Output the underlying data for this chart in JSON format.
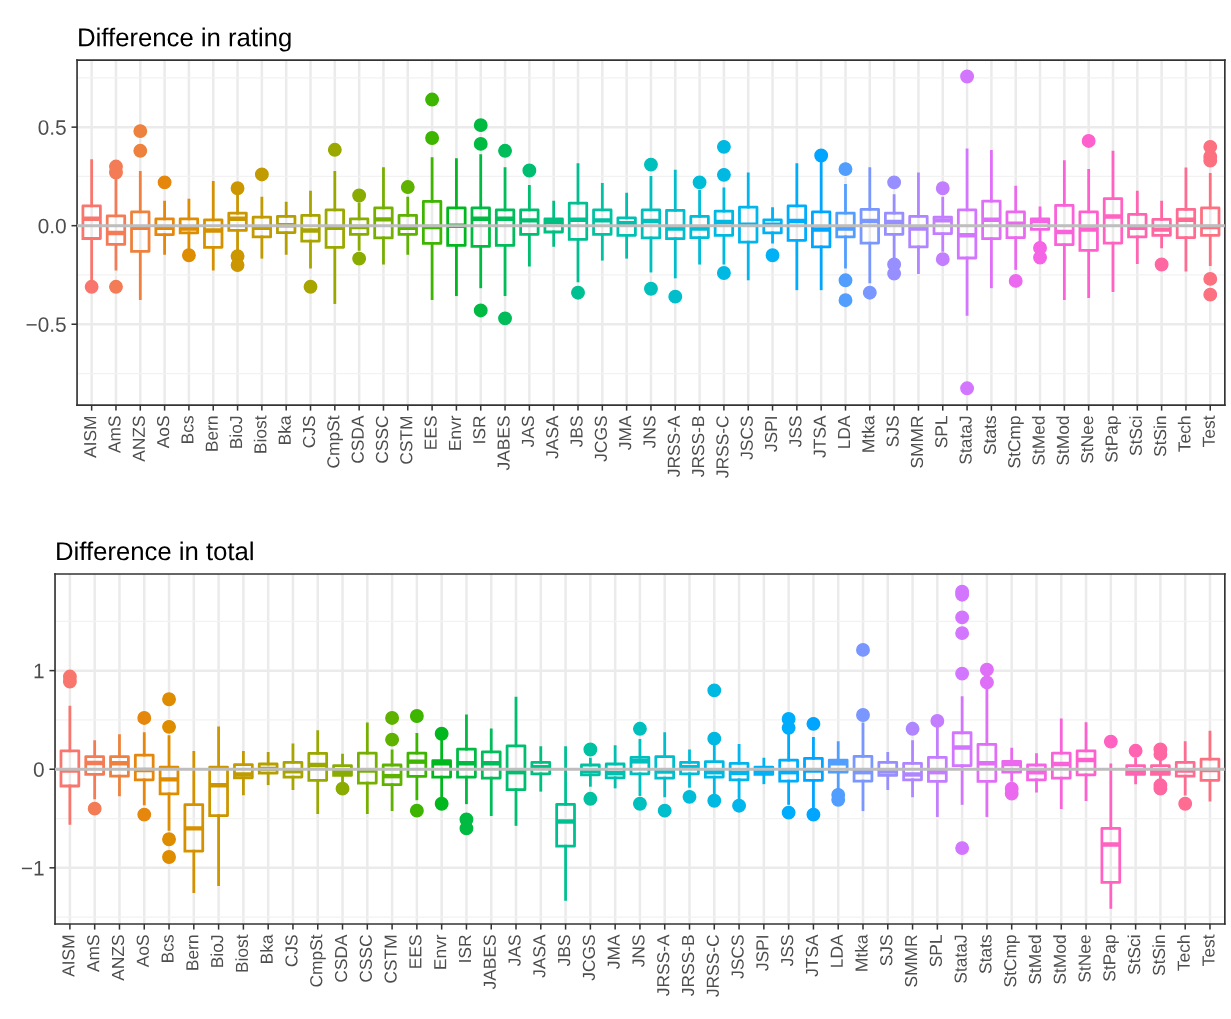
{
  "chart_data": [
    {
      "type": "box",
      "title": "Difference in rating",
      "categories": [
        "AISM",
        "AmS",
        "ANZS",
        "AoS",
        "Bcs",
        "Bern",
        "BioJ",
        "Biost",
        "Bka",
        "CJS",
        "CmpSt",
        "CSDA",
        "CSSC",
        "CSTM",
        "EES",
        "Envr",
        "ISR",
        "JABES",
        "JAS",
        "JASA",
        "JBS",
        "JCGS",
        "JMA",
        "JNS",
        "JRSS-A",
        "JRSS-B",
        "JRSS-C",
        "JSCS",
        "JSPI",
        "JSS",
        "JTSA",
        "LDA",
        "Mtka",
        "SJS",
        "SMMR",
        "SPL",
        "StataJ",
        "Stats",
        "StCmp",
        "StMed",
        "StMod",
        "StNee",
        "StPap",
        "StSci",
        "StSin",
        "Tech",
        "Test"
      ],
      "colors": [
        "#f8766d",
        "#f37c57",
        "#ed813d",
        "#e6870d",
        "#de8c00",
        "#d59100",
        "#cb9600",
        "#c19b00",
        "#b59f00",
        "#a8a400",
        "#9aa800",
        "#8aac00",
        "#77af00",
        "#5fb200",
        "#3eb500",
        "#00b81d",
        "#00ba42",
        "#00bc5a",
        "#00be6f",
        "#00bf81",
        "#00c092",
        "#00c1a1",
        "#00c0b0",
        "#00c0be",
        "#00becb",
        "#00bcd7",
        "#00b9e2",
        "#00b6ec",
        "#00b1f5",
        "#00acfc",
        "#00a5ff",
        "#519eff",
        "#7a97ff",
        "#978fff",
        "#af86ff",
        "#c37eff",
        "#d376ff",
        "#e06ff8",
        "#eb69ef",
        "#f464e5",
        "#fa62da",
        "#fe61ce",
        "#ff62c0",
        "#ff64b2",
        "#ff67a2",
        "#ff6c92",
        "#fc7180"
      ],
      "boxes": [
        {
          "low": -0.27,
          "q1": -0.065,
          "median": 0.035,
          "q3": 0.1,
          "high": 0.33,
          "outliers": [
            -0.31
          ]
        },
        {
          "low": -0.22,
          "q1": -0.095,
          "median": -0.037,
          "q3": 0.05,
          "high": 0.24,
          "outliers": [
            0.3,
            0.27,
            -0.31
          ]
        },
        {
          "low": -0.37,
          "q1": -0.13,
          "median": -0.01,
          "q3": 0.07,
          "high": 0.27,
          "outliers": [
            0.48,
            0.38
          ]
        },
        {
          "low": -0.14,
          "q1": -0.045,
          "median": -0.01,
          "q3": 0.035,
          "high": 0.12,
          "outliers": [
            0.22
          ]
        },
        {
          "low": -0.12,
          "q1": -0.037,
          "median": -0.015,
          "q3": 0.035,
          "high": 0.13,
          "outliers": [
            -0.15
          ]
        },
        {
          "low": -0.22,
          "q1": -0.11,
          "median": -0.024,
          "q3": 0.03,
          "high": 0.22
        },
        {
          "low": -0.12,
          "q1": -0.024,
          "median": 0.035,
          "q3": 0.064,
          "high": 0.157,
          "outliers": [
            0.19,
            -0.155,
            -0.2
          ]
        },
        {
          "low": -0.16,
          "q1": -0.057,
          "median": -0.01,
          "q3": 0.044,
          "high": 0.14,
          "outliers": [
            0.26
          ]
        },
        {
          "low": -0.14,
          "q1": -0.035,
          "median": 0.002,
          "q3": 0.047,
          "high": 0.115
        },
        {
          "low": -0.21,
          "q1": -0.078,
          "median": -0.024,
          "q3": 0.052,
          "high": 0.17,
          "outliers": [
            -0.31
          ]
        },
        {
          "low": -0.39,
          "q1": -0.11,
          "median": -0.01,
          "q3": 0.08,
          "high": 0.27,
          "outliers": [
            0.385
          ]
        },
        {
          "low": -0.12,
          "q1": -0.044,
          "median": -0.007,
          "q3": 0.035,
          "high": 0.11,
          "outliers": [
            0.153,
            -0.167
          ]
        },
        {
          "low": -0.19,
          "q1": -0.062,
          "median": 0.032,
          "q3": 0.09,
          "high": 0.29
        },
        {
          "low": -0.14,
          "q1": -0.044,
          "median": -0.01,
          "q3": 0.052,
          "high": 0.14,
          "outliers": [
            0.196
          ]
        },
        {
          "low": -0.37,
          "q1": -0.09,
          "median": -0.007,
          "q3": 0.123,
          "high": 0.34,
          "outliers": [
            0.64,
            0.445
          ]
        },
        {
          "low": -0.35,
          "q1": -0.1,
          "median": 0.0,
          "q3": 0.09,
          "high": 0.335
        },
        {
          "low": -0.31,
          "q1": -0.105,
          "median": 0.035,
          "q3": 0.09,
          "high": 0.355,
          "outliers": [
            0.51,
            0.415,
            -0.43
          ]
        },
        {
          "low": -0.35,
          "q1": -0.1,
          "median": 0.035,
          "q3": 0.08,
          "high": 0.29,
          "outliers": [
            0.38,
            -0.47
          ]
        },
        {
          "low": -0.2,
          "q1": -0.044,
          "median": 0.027,
          "q3": 0.08,
          "high": 0.2,
          "outliers": [
            0.28
          ]
        },
        {
          "low": -0.1,
          "q1": -0.032,
          "median": 0.019,
          "q3": 0.035,
          "high": 0.12
        },
        {
          "low": -0.28,
          "q1": -0.07,
          "median": 0.03,
          "q3": 0.115,
          "high": 0.31,
          "outliers": [
            -0.34
          ]
        },
        {
          "low": -0.17,
          "q1": -0.044,
          "median": 0.027,
          "q3": 0.08,
          "high": 0.21
        },
        {
          "low": -0.16,
          "q1": -0.049,
          "median": 0.013,
          "q3": 0.04,
          "high": 0.16
        },
        {
          "low": -0.23,
          "q1": -0.062,
          "median": 0.024,
          "q3": 0.08,
          "high": 0.245,
          "outliers": [
            0.31,
            -0.32
          ]
        },
        {
          "low": -0.26,
          "q1": -0.066,
          "median": -0.015,
          "q3": 0.078,
          "high": 0.277,
          "outliers": [
            -0.36
          ]
        },
        {
          "low": -0.19,
          "q1": -0.06,
          "median": -0.015,
          "q3": 0.047,
          "high": 0.174,
          "outliers": [
            0.22
          ]
        },
        {
          "low": -0.19,
          "q1": -0.049,
          "median": 0.019,
          "q3": 0.074,
          "high": 0.187,
          "outliers": [
            0.4,
            0.258,
            -0.24
          ]
        },
        {
          "low": -0.27,
          "q1": -0.083,
          "median": 0.005,
          "q3": 0.094,
          "high": 0.263
        },
        {
          "low": -0.083,
          "q1": -0.037,
          "median": 0.005,
          "q3": 0.03,
          "high": 0.086,
          "outliers": [
            -0.15
          ]
        },
        {
          "low": -0.32,
          "q1": -0.074,
          "median": 0.024,
          "q3": 0.1,
          "high": 0.31
        },
        {
          "low": -0.32,
          "q1": -0.108,
          "median": -0.019,
          "q3": 0.07,
          "high": 0.32,
          "outliers": [
            0.356
          ]
        },
        {
          "low": -0.21,
          "q1": -0.057,
          "median": -0.015,
          "q3": 0.064,
          "high": 0.204,
          "outliers": [
            0.287,
            -0.277,
            -0.378
          ]
        },
        {
          "low": -0.285,
          "q1": -0.088,
          "median": 0.024,
          "q3": 0.083,
          "high": 0.29,
          "outliers": [
            -0.34
          ]
        },
        {
          "low": -0.17,
          "q1": -0.044,
          "median": 0.019,
          "q3": 0.064,
          "high": 0.153,
          "outliers": [
            0.22,
            -0.197,
            -0.243
          ]
        },
        {
          "low": -0.238,
          "q1": -0.108,
          "median": -0.015,
          "q3": 0.047,
          "high": 0.263
        },
        {
          "low": -0.125,
          "q1": -0.04,
          "median": 0.027,
          "q3": 0.044,
          "high": 0.14,
          "outliers": [
            0.19,
            -0.17
          ]
        },
        {
          "low": -0.45,
          "q1": -0.164,
          "median": -0.049,
          "q3": 0.08,
          "high": 0.384,
          "outliers": [
            0.757,
            -0.825
          ]
        },
        {
          "low": -0.31,
          "q1": -0.066,
          "median": 0.03,
          "q3": 0.125,
          "high": 0.377
        },
        {
          "low": -0.217,
          "q1": -0.06,
          "median": 0.01,
          "q3": 0.07,
          "high": 0.196,
          "outliers": [
            -0.28
          ]
        },
        {
          "low": -0.09,
          "q1": -0.019,
          "median": 0.024,
          "q3": 0.035,
          "high": 0.09,
          "outliers": [
            -0.113,
            -0.162
          ]
        },
        {
          "low": -0.37,
          "q1": -0.096,
          "median": -0.032,
          "q3": 0.103,
          "high": 0.325
        },
        {
          "low": -0.36,
          "q1": -0.125,
          "median": -0.019,
          "q3": 0.07,
          "high": 0.28,
          "outliers": [
            0.43
          ]
        },
        {
          "low": -0.33,
          "q1": -0.088,
          "median": 0.047,
          "q3": 0.137,
          "high": 0.373
        },
        {
          "low": -0.187,
          "q1": -0.057,
          "median": -0.01,
          "q3": 0.057,
          "high": 0.17
        },
        {
          "low": -0.108,
          "q1": -0.049,
          "median": -0.02,
          "q3": 0.032,
          "high": 0.12,
          "outliers": [
            -0.197
          ]
        },
        {
          "low": -0.226,
          "q1": -0.06,
          "median": 0.03,
          "q3": 0.083,
          "high": 0.288
        },
        {
          "low": -0.197,
          "q1": -0.049,
          "median": -0.007,
          "q3": 0.09,
          "high": 0.26,
          "outliers": [
            0.4,
            0.35,
            0.33,
            -0.27,
            -0.35
          ]
        }
      ],
      "ylim": [
        -0.91,
        0.84
      ],
      "yticks": [
        {
          "value": -0.5,
          "label": "−0.5"
        },
        {
          "value": 0,
          "label": "0.0"
        },
        0.5
      ],
      "ref_lines": [
        {
          "axis": "y",
          "value": 0,
          "color": "#bebebe"
        }
      ],
      "grid": true
    },
    {
      "type": "box",
      "title": "Difference in total",
      "categories": [
        "AISM",
        "AmS",
        "ANZS",
        "AoS",
        "Bcs",
        "Bern",
        "BioJ",
        "Biost",
        "Bka",
        "CJS",
        "CmpSt",
        "CSDA",
        "CSSC",
        "CSTM",
        "EES",
        "Envr",
        "ISR",
        "JABES",
        "JAS",
        "JASA",
        "JBS",
        "JCGS",
        "JMA",
        "JNS",
        "JRSS-A",
        "JRSS-B",
        "JRSS-C",
        "JSCS",
        "JSPI",
        "JSS",
        "JTSA",
        "LDA",
        "Mtka",
        "SJS",
        "SMMR",
        "SPL",
        "StataJ",
        "Stats",
        "StCmp",
        "StMed",
        "StMod",
        "StNee",
        "StPap",
        "StSci",
        "StSin",
        "Tech",
        "Test"
      ],
      "colors": [
        "#f8766d",
        "#f37c57",
        "#ed813d",
        "#e6870d",
        "#de8c00",
        "#d59100",
        "#cb9600",
        "#c19b00",
        "#b59f00",
        "#a8a400",
        "#9aa800",
        "#8aac00",
        "#77af00",
        "#5fb200",
        "#3eb500",
        "#00b81d",
        "#00ba42",
        "#00bc5a",
        "#00be6f",
        "#00bf81",
        "#00c092",
        "#00c1a1",
        "#00c0b0",
        "#00c0be",
        "#00becb",
        "#00bcd7",
        "#00b9e2",
        "#00b6ec",
        "#00b1f5",
        "#00acfc",
        "#00a5ff",
        "#519eff",
        "#7a97ff",
        "#978fff",
        "#af86ff",
        "#c37eff",
        "#d376ff",
        "#e06ff8",
        "#eb69ef",
        "#f464e5",
        "#fa62da",
        "#fe61ce",
        "#ff62c0",
        "#ff64b2",
        "#ff67a2",
        "#ff6c92",
        "#fc7180"
      ],
      "boxes": [
        {
          "low": -0.55,
          "q1": -0.17,
          "median": -0.013,
          "q3": 0.187,
          "high": 0.63,
          "outliers": [
            0.94,
            0.89
          ]
        },
        {
          "low": -0.29,
          "q1": -0.053,
          "median": 0.063,
          "q3": 0.127,
          "high": 0.28,
          "outliers": [
            -0.4
          ]
        },
        {
          "low": -0.26,
          "q1": -0.07,
          "median": 0.06,
          "q3": 0.127,
          "high": 0.34
        },
        {
          "low": -0.35,
          "q1": -0.107,
          "median": -0.007,
          "q3": 0.143,
          "high": 0.36,
          "outliers": [
            0.52,
            -0.46
          ]
        },
        {
          "low": -0.61,
          "q1": -0.25,
          "median": -0.103,
          "q3": 0.02,
          "high": 0.33,
          "outliers": [
            0.71,
            0.43,
            -0.71,
            -0.89
          ]
        },
        {
          "low": -1.24,
          "q1": -0.83,
          "median": -0.6,
          "q3": -0.36,
          "high": 0.17
        },
        {
          "low": -1.17,
          "q1": -0.47,
          "median": -0.163,
          "q3": 0.02,
          "high": 0.42
        },
        {
          "low": -0.25,
          "q1": -0.087,
          "median": -0.053,
          "q3": 0.047,
          "high": 0.17
        },
        {
          "low": -0.147,
          "q1": -0.04,
          "median": 0.003,
          "q3": 0.053,
          "high": 0.16
        },
        {
          "low": -0.197,
          "q1": -0.08,
          "median": -0.02,
          "q3": 0.07,
          "high": 0.247
        },
        {
          "low": -0.44,
          "q1": -0.113,
          "median": 0.043,
          "q3": 0.16,
          "high": 0.38
        },
        {
          "low": -0.13,
          "q1": -0.063,
          "median": -0.03,
          "q3": 0.037,
          "high": 0.143,
          "outliers": [
            -0.197
          ]
        },
        {
          "low": -0.44,
          "q1": -0.14,
          "median": -0.013,
          "q3": 0.163,
          "high": 0.46
        },
        {
          "low": -0.41,
          "q1": -0.157,
          "median": -0.07,
          "q3": 0.043,
          "high": 0.187,
          "outliers": [
            0.52,
            0.3
          ]
        },
        {
          "low": -0.3,
          "q1": -0.073,
          "median": 0.077,
          "q3": 0.163,
          "high": 0.353,
          "outliers": [
            0.54,
            -0.42
          ]
        },
        {
          "low": -0.31,
          "q1": -0.08,
          "median": 0.06,
          "q3": 0.087,
          "high": 0.287,
          "outliers": [
            0.36,
            -0.35
          ]
        },
        {
          "low": -0.34,
          "q1": -0.08,
          "median": 0.06,
          "q3": 0.203,
          "high": 0.54,
          "outliers": [
            -0.51,
            -0.6
          ]
        },
        {
          "low": -0.46,
          "q1": -0.09,
          "median": 0.06,
          "q3": 0.177,
          "high": 0.4
        },
        {
          "low": -0.56,
          "q1": -0.207,
          "median": -0.03,
          "q3": 0.237,
          "high": 0.72
        },
        {
          "low": -0.213,
          "q1": -0.047,
          "median": 0.02,
          "q3": 0.07,
          "high": 0.22
        },
        {
          "low": -1.32,
          "q1": -0.78,
          "median": -0.53,
          "q3": -0.357,
          "high": 0.22
        },
        {
          "low": -0.163,
          "q1": -0.057,
          "median": -0.02,
          "q3": 0.043,
          "high": 0.103,
          "outliers": [
            0.2,
            -0.3
          ]
        },
        {
          "low": -0.18,
          "q1": -0.087,
          "median": -0.04,
          "q3": 0.053,
          "high": 0.23
        },
        {
          "low": -0.257,
          "q1": -0.047,
          "median": 0.08,
          "q3": 0.12,
          "high": 0.293,
          "outliers": [
            0.41,
            -0.35
          ]
        },
        {
          "low": -0.27,
          "q1": -0.09,
          "median": -0.023,
          "q3": 0.127,
          "high": 0.36,
          "outliers": [
            -0.42
          ]
        },
        {
          "low": -0.173,
          "q1": -0.047,
          "median": 0.02,
          "q3": 0.07,
          "high": 0.187,
          "outliers": [
            -0.28
          ]
        },
        {
          "low": -0.263,
          "q1": -0.08,
          "median": -0.03,
          "q3": 0.077,
          "high": 0.27,
          "outliers": [
            0.8,
            0.31,
            -0.32
          ]
        },
        {
          "low": -0.3,
          "q1": -0.107,
          "median": -0.037,
          "q3": 0.06,
          "high": 0.243,
          "outliers": [
            -0.37
          ]
        },
        {
          "low": -0.137,
          "q1": -0.053,
          "median": -0.023,
          "q3": 0.02,
          "high": 0.103
        },
        {
          "low": -0.347,
          "q1": -0.12,
          "median": -0.03,
          "q3": 0.093,
          "high": 0.387,
          "outliers": [
            0.51,
            0.42,
            -0.44
          ]
        },
        {
          "low": -0.38,
          "q1": -0.113,
          "median": -0.013,
          "q3": 0.11,
          "high": 0.313,
          "outliers": [
            0.46,
            -0.46
          ]
        },
        {
          "low": -0.197,
          "q1": -0.03,
          "median": 0.06,
          "q3": 0.093,
          "high": 0.27,
          "outliers": [
            -0.26,
            -0.31
          ]
        },
        {
          "low": -0.41,
          "q1": -0.12,
          "median": -0.03,
          "q3": 0.13,
          "high": 0.46,
          "outliers": [
            1.21,
            0.55
          ]
        },
        {
          "low": -0.197,
          "q1": -0.063,
          "median": -0.023,
          "q3": 0.07,
          "high": 0.16
        },
        {
          "low": -0.27,
          "q1": -0.107,
          "median": -0.053,
          "q3": 0.06,
          "high": 0.28,
          "outliers": [
            0.41
          ]
        },
        {
          "low": -0.47,
          "q1": -0.123,
          "median": -0.03,
          "q3": 0.12,
          "high": 0.42,
          "outliers": [
            0.49
          ]
        },
        {
          "low": -0.347,
          "q1": 0.037,
          "median": 0.22,
          "q3": 0.37,
          "high": 0.727,
          "outliers": [
            1.8,
            1.77,
            1.54,
            1.38,
            0.97,
            -0.8
          ]
        },
        {
          "low": -0.47,
          "q1": -0.123,
          "median": 0.06,
          "q3": 0.253,
          "high": 0.82,
          "outliers": [
            1.01,
            0.88
          ]
        },
        {
          "low": -0.113,
          "q1": -0.03,
          "median": 0.053,
          "q3": 0.08,
          "high": 0.203,
          "outliers": [
            -0.197,
            -0.247
          ]
        },
        {
          "low": -0.223,
          "q1": -0.107,
          "median": -0.03,
          "q3": 0.043,
          "high": 0.147
        },
        {
          "low": -0.39,
          "q1": -0.09,
          "median": 0.053,
          "q3": 0.163,
          "high": 0.5
        },
        {
          "low": -0.307,
          "q1": -0.057,
          "median": 0.093,
          "q3": 0.187,
          "high": 0.463
        },
        {
          "low": -1.4,
          "q1": -1.147,
          "median": -0.763,
          "q3": -0.6,
          "high": 0.043,
          "outliers": [
            0.28
          ]
        },
        {
          "low": -0.137,
          "q1": -0.053,
          "median": -0.023,
          "q3": 0.037,
          "high": 0.103,
          "outliers": [
            0.187
          ]
        },
        {
          "low": -0.113,
          "q1": -0.053,
          "median": -0.03,
          "q3": 0.037,
          "high": 0.093,
          "outliers": [
            0.2,
            0.153,
            -0.163,
            -0.197
          ]
        },
        {
          "low": -0.253,
          "q1": -0.07,
          "median": -0.013,
          "q3": 0.07,
          "high": 0.27,
          "outliers": [
            -0.35
          ]
        },
        {
          "low": -0.313,
          "q1": -0.113,
          "median": -0.007,
          "q3": 0.103,
          "high": 0.377
        }
      ],
      "ylim": [
        -1.57,
        1.98
      ],
      "yticks": [
        {
          "value": -1,
          "label": "−1"
        },
        0,
        1
      ],
      "ref_lines": [
        {
          "axis": "y",
          "value": 0,
          "color": "#bebebe"
        }
      ],
      "grid": true
    }
  ]
}
